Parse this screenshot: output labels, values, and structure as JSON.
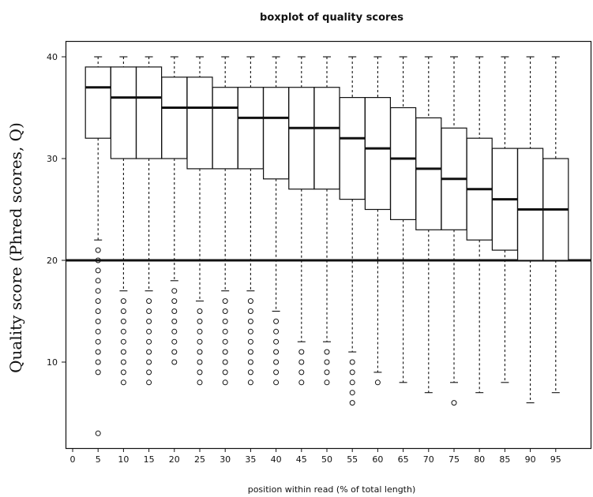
{
  "chart_data": {
    "type": "box",
    "title": "boxplot of quality scores",
    "xlabel": "position within read (% of total length)",
    "ylabel": "Quality score (Phred scores, Q)",
    "x_ticks": [
      0,
      5,
      10,
      15,
      20,
      25,
      30,
      35,
      40,
      45,
      50,
      55,
      60,
      65,
      70,
      75,
      80,
      85,
      90,
      95
    ],
    "y_ticks": [
      10,
      20,
      30,
      40
    ],
    "xlim": [
      0,
      100
    ],
    "ylim": [
      0,
      42
    ],
    "reference_line": 20,
    "boxes": [
      {
        "x": 5,
        "whisker_low": 22,
        "q1": 32,
        "median": 37,
        "q3": 39,
        "whisker_high": 40,
        "outliers": [
          21,
          20,
          19,
          18,
          17,
          16,
          15,
          14,
          13,
          12,
          11,
          10,
          9,
          3
        ]
      },
      {
        "x": 10,
        "whisker_low": 17,
        "q1": 30,
        "median": 36,
        "q3": 39,
        "whisker_high": 40,
        "outliers": [
          16,
          15,
          14,
          13,
          12,
          11,
          10,
          9,
          8
        ]
      },
      {
        "x": 15,
        "whisker_low": 17,
        "q1": 30,
        "median": 36,
        "q3": 39,
        "whisker_high": 40,
        "outliers": [
          16,
          15,
          14,
          13,
          12,
          11,
          10,
          9,
          8
        ]
      },
      {
        "x": 20,
        "whisker_low": 18,
        "q1": 30,
        "median": 35,
        "q3": 38,
        "whisker_high": 40,
        "outliers": [
          17,
          16,
          15,
          14,
          13,
          12,
          11,
          10
        ]
      },
      {
        "x": 25,
        "whisker_low": 16,
        "q1": 29,
        "median": 35,
        "q3": 38,
        "whisker_high": 40,
        "outliers": [
          15,
          14,
          13,
          12,
          11,
          10,
          9,
          8
        ]
      },
      {
        "x": 30,
        "whisker_low": 17,
        "q1": 29,
        "median": 35,
        "q3": 37,
        "whisker_high": 40,
        "outliers": [
          16,
          15,
          14,
          13,
          12,
          11,
          10,
          9,
          8
        ]
      },
      {
        "x": 35,
        "whisker_low": 17,
        "q1": 29,
        "median": 34,
        "q3": 37,
        "whisker_high": 40,
        "outliers": [
          16,
          15,
          14,
          13,
          12,
          11,
          10,
          9,
          8
        ]
      },
      {
        "x": 40,
        "whisker_low": 15,
        "q1": 28,
        "median": 34,
        "q3": 37,
        "whisker_high": 40,
        "outliers": [
          14,
          13,
          12,
          11,
          10,
          9,
          8
        ]
      },
      {
        "x": 45,
        "whisker_low": 12,
        "q1": 27,
        "median": 33,
        "q3": 37,
        "whisker_high": 40,
        "outliers": [
          11,
          10,
          9,
          8
        ]
      },
      {
        "x": 50,
        "whisker_low": 12,
        "q1": 27,
        "median": 33,
        "q3": 37,
        "whisker_high": 40,
        "outliers": [
          11,
          10,
          9,
          8
        ]
      },
      {
        "x": 55,
        "whisker_low": 11,
        "q1": 26,
        "median": 32,
        "q3": 36,
        "whisker_high": 40,
        "outliers": [
          10,
          9,
          8,
          7,
          6
        ]
      },
      {
        "x": 60,
        "whisker_low": 9,
        "q1": 25,
        "median": 31,
        "q3": 36,
        "whisker_high": 40,
        "outliers": [
          8
        ]
      },
      {
        "x": 65,
        "whisker_low": 8,
        "q1": 24,
        "median": 30,
        "q3": 35,
        "whisker_high": 40,
        "outliers": []
      },
      {
        "x": 70,
        "whisker_low": 7,
        "q1": 23,
        "median": 29,
        "q3": 34,
        "whisker_high": 40,
        "outliers": []
      },
      {
        "x": 75,
        "whisker_low": 8,
        "q1": 23,
        "median": 28,
        "q3": 33,
        "whisker_high": 40,
        "outliers": [
          6
        ]
      },
      {
        "x": 80,
        "whisker_low": 7,
        "q1": 22,
        "median": 27,
        "q3": 32,
        "whisker_high": 40,
        "outliers": []
      },
      {
        "x": 85,
        "whisker_low": 8,
        "q1": 21,
        "median": 26,
        "q3": 31,
        "whisker_high": 40,
        "outliers": []
      },
      {
        "x": 90,
        "whisker_low": 6,
        "q1": 20,
        "median": 25,
        "q3": 31,
        "whisker_high": 40,
        "outliers": []
      },
      {
        "x": 95,
        "whisker_low": 7,
        "q1": 20,
        "median": 25,
        "q3": 30,
        "whisker_high": 40,
        "outliers": []
      }
    ]
  }
}
